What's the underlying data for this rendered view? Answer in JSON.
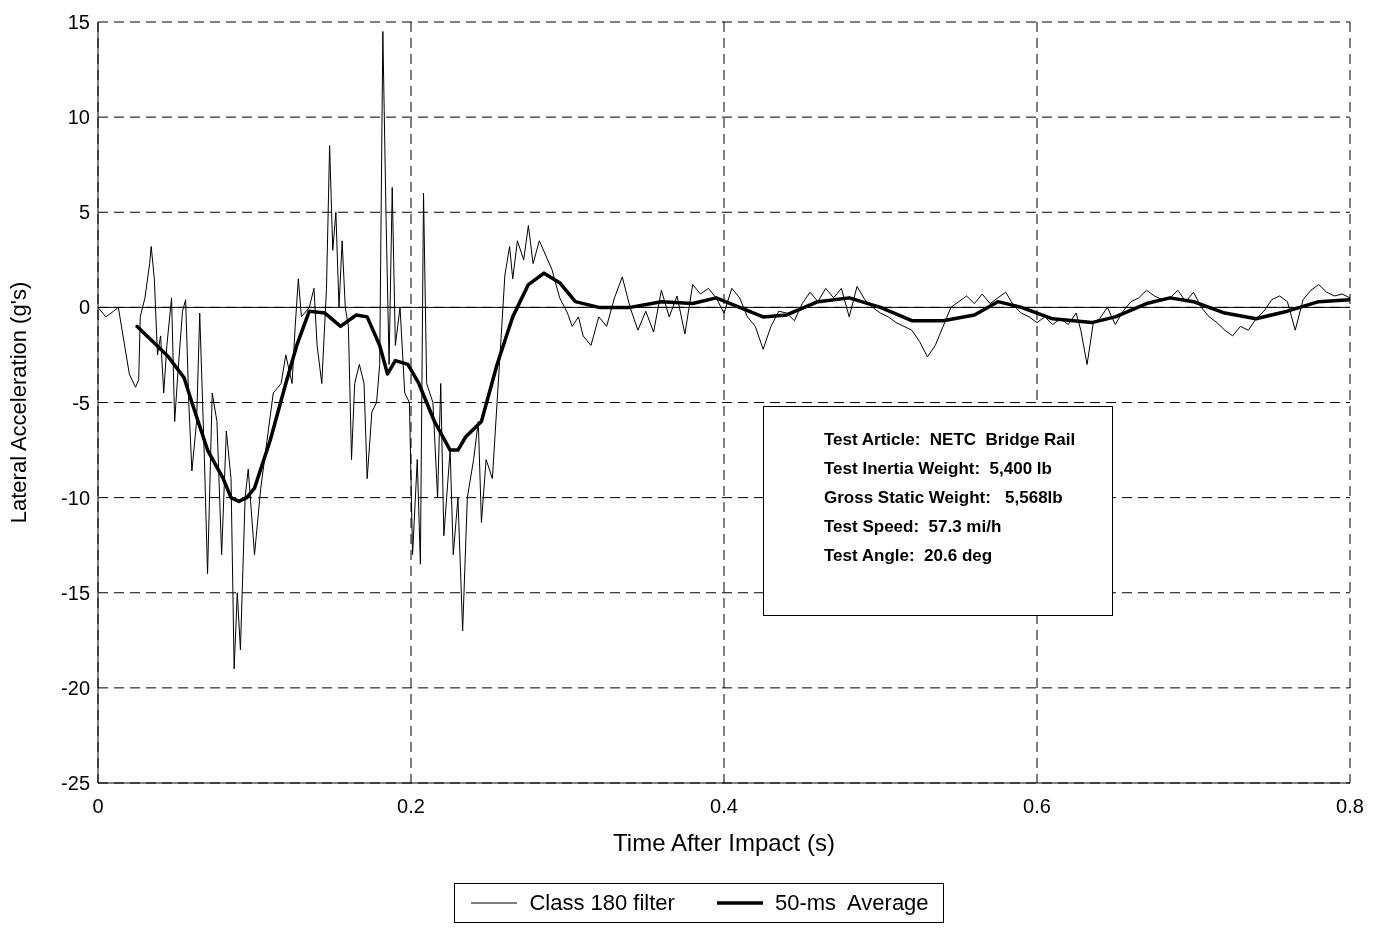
{
  "chart_data": {
    "type": "line",
    "xlabel": "Time After Impact (s)",
    "ylabel": "Lateral Acceleration (g's)",
    "xlim": [
      0,
      0.8
    ],
    "xticks": [
      0,
      0.2,
      0.4,
      0.6,
      0.8
    ],
    "ylim": [
      -25,
      15
    ],
    "yticks": [
      -25,
      -20,
      -15,
      -10,
      -5,
      0,
      5,
      10,
      15
    ],
    "grid": true,
    "legend": "bottom",
    "marker": "none",
    "line_style": "solid",
    "ref_lines": [
      {
        "axis": "y",
        "value": 0,
        "color": "#000000",
        "line_style": "solid"
      }
    ],
    "annotations": [
      "Test Article:  NETC  Bridge Rail",
      "Test Inertia Weight:  5,400 lb",
      "Gross Static Weight:   5,568lb",
      "Test Speed:  57.3 mi/h",
      "Test Angle:  20.6 deg"
    ],
    "series": [
      {
        "name": "Class 180 filter",
        "color": "#000000",
        "x": [
          0,
          0.005,
          0.01,
          0.013,
          0.02,
          0.024,
          0.026,
          0.027,
          0.03,
          0.033,
          0.034,
          0.036,
          0.038,
          0.04,
          0.042,
          0.044,
          0.047,
          0.049,
          0.051,
          0.054,
          0.056,
          0.058,
          0.06,
          0.063,
          0.065,
          0.068,
          0.07,
          0.073,
          0.076,
          0.079,
          0.082,
          0.085,
          0.087,
          0.089,
          0.091,
          0.094,
          0.096,
          0.1,
          0.104,
          0.108,
          0.112,
          0.117,
          0.12,
          0.124,
          0.126,
          0.128,
          0.13,
          0.135,
          0.138,
          0.14,
          0.143,
          0.146,
          0.148,
          0.15,
          0.152,
          0.154,
          0.156,
          0.158,
          0.16,
          0.162,
          0.164,
          0.167,
          0.17,
          0.172,
          0.175,
          0.178,
          0.18,
          0.182,
          0.184,
          0.186,
          0.188,
          0.19,
          0.193,
          0.196,
          0.199,
          0.201,
          0.204,
          0.206,
          0.208,
          0.21,
          0.214,
          0.217,
          0.219,
          0.221,
          0.225,
          0.227,
          0.23,
          0.233,
          0.236,
          0.24,
          0.243,
          0.245,
          0.248,
          0.252,
          0.255,
          0.258,
          0.26,
          0.263,
          0.265,
          0.268,
          0.272,
          0.275,
          0.278,
          0.282,
          0.29,
          0.295,
          0.3,
          0.303,
          0.307,
          0.31,
          0.315,
          0.32,
          0.325,
          0.33,
          0.335,
          0.34,
          0.345,
          0.35,
          0.355,
          0.36,
          0.365,
          0.37,
          0.375,
          0.38,
          0.385,
          0.39,
          0.395,
          0.4,
          0.405,
          0.41,
          0.415,
          0.42,
          0.425,
          0.43,
          0.435,
          0.44,
          0.445,
          0.45,
          0.455,
          0.46,
          0.465,
          0.47,
          0.475,
          0.48,
          0.485,
          0.49,
          0.495,
          0.5,
          0.505,
          0.51,
          0.515,
          0.52,
          0.525,
          0.53,
          0.535,
          0.54,
          0.545,
          0.55,
          0.555,
          0.56,
          0.565,
          0.57,
          0.575,
          0.58,
          0.585,
          0.59,
          0.595,
          0.6,
          0.605,
          0.61,
          0.615,
          0.62,
          0.625,
          0.628,
          0.632,
          0.636,
          0.64,
          0.645,
          0.65,
          0.655,
          0.66,
          0.665,
          0.67,
          0.675,
          0.68,
          0.685,
          0.69,
          0.695,
          0.7,
          0.705,
          0.71,
          0.715,
          0.72,
          0.725,
          0.73,
          0.735,
          0.74,
          0.745,
          0.75,
          0.755,
          0.76,
          0.765,
          0.77,
          0.775,
          0.78,
          0.785,
          0.79,
          0.795,
          0.8
        ],
        "values": [
          0,
          -0.5,
          -0.2,
          0,
          -3.5,
          -4.2,
          -3.8,
          -0.5,
          0.5,
          2.3,
          3.2,
          1.5,
          -2.5,
          -1.5,
          -4.5,
          -2,
          0.5,
          -6,
          -3.5,
          -0.2,
          0.4,
          -5,
          -8.6,
          -6,
          -0.3,
          -8,
          -14,
          -4.5,
          -6,
          -13,
          -6.5,
          -9,
          -19,
          -15,
          -18,
          -10,
          -8.5,
          -13,
          -9.5,
          -7,
          -4.5,
          -4,
          -2.5,
          -4,
          -1,
          1.5,
          -0.5,
          0,
          1,
          -2,
          -4,
          1,
          8.5,
          3,
          5,
          0,
          3.5,
          0,
          -1,
          -8,
          -4,
          -3,
          -4,
          -9,
          -5.5,
          -5,
          -3,
          14.5,
          5,
          -3,
          6.3,
          -2,
          0,
          -4.5,
          -5,
          -13,
          -8,
          -13.5,
          6,
          -4,
          -5,
          -10,
          -4,
          -12,
          -7.5,
          -13,
          -10,
          -17,
          -10,
          -8,
          -6,
          -11.3,
          -8,
          -9,
          -5,
          -1,
          1.7,
          3.2,
          1.5,
          3.5,
          2.5,
          4.3,
          2.3,
          3.5,
          2,
          0.5,
          -0.3,
          -1,
          -0.5,
          -1.5,
          -2,
          -0.5,
          -1,
          0.5,
          1.6,
          0,
          -1.2,
          -0.2,
          -1.3,
          0.9,
          -0.5,
          0.6,
          -1.4,
          1.2,
          0.7,
          1,
          0.5,
          -0.3,
          1,
          0.5,
          -0.5,
          -1,
          -2.2,
          -1,
          -0.2,
          -0.3,
          -0.7,
          0.2,
          0.8,
          0.3,
          1,
          0.5,
          1,
          -0.5,
          1.1,
          0.4,
          0,
          -0.3,
          -0.5,
          -0.8,
          -1,
          -1.2,
          -1.8,
          -2.6,
          -2,
          -1,
          0,
          0.3,
          0.6,
          0.2,
          0.7,
          0.2,
          0.5,
          0.8,
          0.1,
          -0.3,
          -0.5,
          -0.8,
          -0.5,
          -0.9,
          -0.6,
          -0.9,
          -0.3,
          -1.2,
          -3,
          -0.8,
          -0.6,
          0,
          -0.9,
          -0.2,
          0.3,
          0.5,
          0.9,
          0.6,
          0.4,
          0.5,
          0.9,
          0.3,
          0.8,
          0,
          -0.5,
          -0.8,
          -1.2,
          -1.5,
          -1,
          -1.2,
          -0.6,
          -0.2,
          0.4,
          0.6,
          0.3,
          -1.2,
          0.4,
          0.9,
          1.2,
          0.8,
          0.6,
          0.7,
          0.5
        ]
      },
      {
        "name": "50-ms  Average",
        "color": "#000000",
        "x": [
          0.025,
          0.035,
          0.045,
          0.055,
          0.06,
          0.07,
          0.08,
          0.085,
          0.09,
          0.095,
          0.1,
          0.11,
          0.12,
          0.127,
          0.135,
          0.145,
          0.155,
          0.165,
          0.172,
          0.18,
          0.185,
          0.19,
          0.198,
          0.205,
          0.215,
          0.225,
          0.23,
          0.235,
          0.245,
          0.255,
          0.265,
          0.275,
          0.285,
          0.295,
          0.305,
          0.32,
          0.34,
          0.36,
          0.38,
          0.395,
          0.41,
          0.425,
          0.44,
          0.46,
          0.48,
          0.5,
          0.52,
          0.54,
          0.56,
          0.575,
          0.59,
          0.61,
          0.635,
          0.65,
          0.67,
          0.685,
          0.7,
          0.72,
          0.74,
          0.76,
          0.78,
          0.8
        ],
        "values": [
          -1,
          -1.8,
          -2.6,
          -3.7,
          -5,
          -7.5,
          -9,
          -10,
          -10.2,
          -10,
          -9.5,
          -7,
          -4,
          -2,
          -0.2,
          -0.3,
          -1,
          -0.4,
          -0.5,
          -2,
          -3.5,
          -2.8,
          -3,
          -4,
          -6,
          -7.5,
          -7.5,
          -6.8,
          -6,
          -3,
          -0.5,
          1.2,
          1.8,
          1.3,
          0.3,
          0,
          0,
          0.3,
          0.2,
          0.5,
          0,
          -0.5,
          -0.4,
          0.3,
          0.5,
          0,
          -0.7,
          -0.7,
          -0.4,
          0.3,
          0,
          -0.6,
          -0.8,
          -0.5,
          0.2,
          0.5,
          0.3,
          -0.3,
          -0.6,
          -0.2,
          0.3,
          0.4
        ]
      }
    ]
  }
}
